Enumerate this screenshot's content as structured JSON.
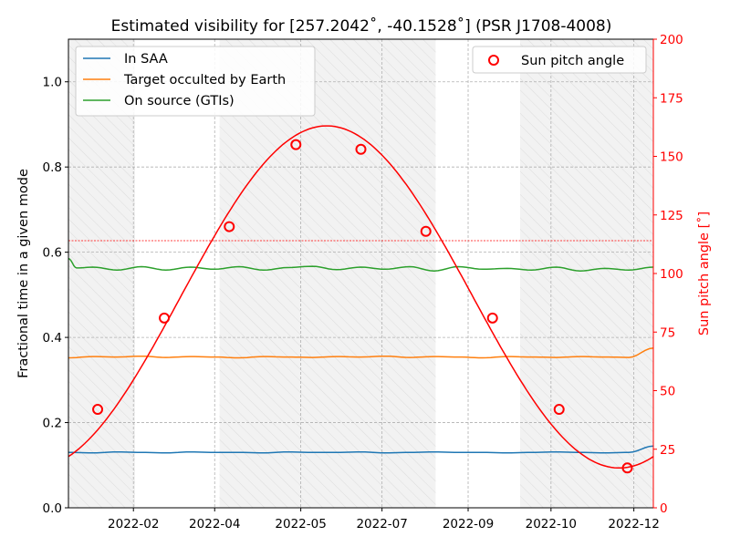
{
  "chart_data": {
    "type": "line",
    "title": "Estimated visibility for [257.2042˚, -40.1528˚] (PSR J1708-4008)",
    "xlabel": "",
    "ylabel_left": "Fractional time in a given mode",
    "ylabel_right": "Sun pitch angle [˚]",
    "xlim": [
      0,
      360
    ],
    "ylim_left": [
      0,
      1.1
    ],
    "ylim_right": [
      0,
      200
    ],
    "x_ticks": [
      {
        "x": 40,
        "label": "2022-02"
      },
      {
        "x": 90,
        "label": "2022-04"
      },
      {
        "x": 143,
        "label": "2022-05"
      },
      {
        "x": 193,
        "label": "2022-07"
      },
      {
        "x": 246,
        "label": "2022-09"
      },
      {
        "x": 297,
        "label": "2022-10"
      },
      {
        "x": 348,
        "label": "2022-12"
      }
    ],
    "y_ticks_left": [
      {
        "v": 0.0,
        "label": "0.0"
      },
      {
        "v": 0.2,
        "label": "0.2"
      },
      {
        "v": 0.4,
        "label": "0.4"
      },
      {
        "v": 0.6,
        "label": "0.6"
      },
      {
        "v": 0.8,
        "label": "0.8"
      },
      {
        "v": 1.0,
        "label": "1.0"
      }
    ],
    "y_ticks_right": [
      {
        "v": 0,
        "label": "0"
      },
      {
        "v": 25,
        "label": "25"
      },
      {
        "v": 50,
        "label": "50"
      },
      {
        "v": 75,
        "label": "75"
      },
      {
        "v": 100,
        "label": "100"
      },
      {
        "v": 125,
        "label": "125"
      },
      {
        "v": 150,
        "label": "150"
      },
      {
        "v": 175,
        "label": "175"
      },
      {
        "v": 200,
        "label": "200"
      }
    ],
    "grid": true,
    "legend_left": "top-left",
    "legend_right": "top-right",
    "shaded_intervals": [
      [
        0,
        41
      ],
      [
        93,
        226
      ],
      [
        278,
        360
      ]
    ],
    "threshold_line_right": 114,
    "series": [
      {
        "name": "In SAA",
        "color": "#1f77b4",
        "axis": "left",
        "x": [
          0,
          15,
          30,
          45,
          60,
          75,
          90,
          105,
          120,
          135,
          150,
          165,
          180,
          195,
          210,
          225,
          240,
          255,
          270,
          285,
          300,
          315,
          330,
          345,
          360
        ],
        "values": [
          0.13,
          0.129,
          0.131,
          0.13,
          0.129,
          0.131,
          0.13,
          0.13,
          0.129,
          0.131,
          0.13,
          0.13,
          0.131,
          0.129,
          0.13,
          0.131,
          0.13,
          0.13,
          0.129,
          0.13,
          0.131,
          0.13,
          0.129,
          0.13,
          0.145
        ]
      },
      {
        "name": "Target occulted by Earth",
        "color": "#ff7f0e",
        "axis": "left",
        "x": [
          0,
          15,
          30,
          45,
          60,
          75,
          90,
          105,
          120,
          135,
          150,
          165,
          180,
          195,
          210,
          225,
          240,
          255,
          270,
          285,
          300,
          315,
          330,
          345,
          360
        ],
        "values": [
          0.352,
          0.355,
          0.354,
          0.356,
          0.353,
          0.355,
          0.354,
          0.352,
          0.355,
          0.354,
          0.353,
          0.355,
          0.354,
          0.356,
          0.353,
          0.355,
          0.354,
          0.352,
          0.355,
          0.354,
          0.353,
          0.355,
          0.354,
          0.353,
          0.375
        ]
      },
      {
        "name": "On source (GTIs)",
        "color": "#2ca02c",
        "axis": "left",
        "x": [
          0,
          5,
          15,
          30,
          45,
          60,
          75,
          90,
          105,
          120,
          135,
          150,
          165,
          180,
          195,
          210,
          225,
          240,
          255,
          270,
          285,
          300,
          315,
          330,
          345,
          360
        ],
        "values": [
          0.585,
          0.563,
          0.565,
          0.558,
          0.566,
          0.558,
          0.565,
          0.56,
          0.566,
          0.558,
          0.564,
          0.567,
          0.559,
          0.565,
          0.56,
          0.566,
          0.556,
          0.566,
          0.56,
          0.562,
          0.558,
          0.565,
          0.556,
          0.562,
          0.558,
          0.565
        ]
      },
      {
        "name": "Sun pitch angle",
        "color": "#ff0000",
        "axis": "right",
        "curve": {
          "mean": 90,
          "amplitude": 73,
          "peak_x": 159,
          "period": 360
        },
        "markers": [
          {
            "x": 18,
            "y": 42
          },
          {
            "x": 59,
            "y": 81
          },
          {
            "x": 99,
            "y": 120
          },
          {
            "x": 140,
            "y": 155
          },
          {
            "x": 180,
            "y": 153
          },
          {
            "x": 220,
            "y": 118
          },
          {
            "x": 261,
            "y": 81
          },
          {
            "x": 302,
            "y": 42
          },
          {
            "x": 344,
            "y": 17
          }
        ]
      }
    ]
  }
}
